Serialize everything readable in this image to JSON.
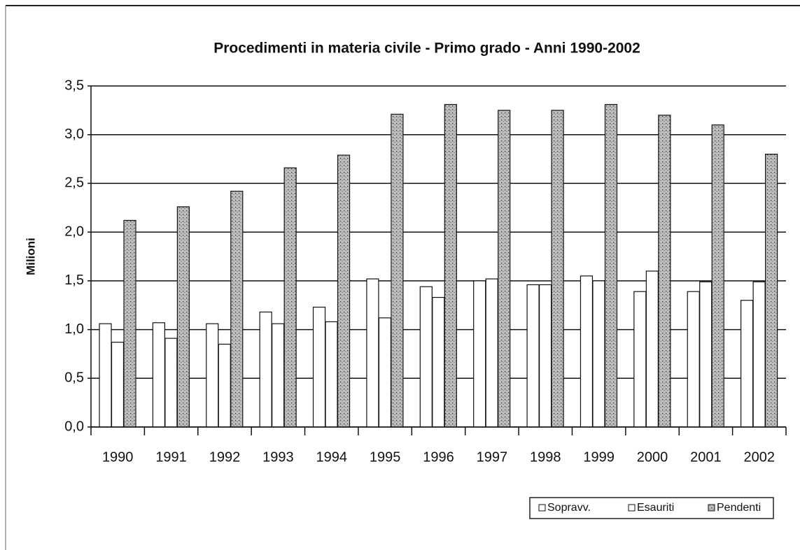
{
  "chart_data": {
    "type": "bar",
    "title": "Procedimenti in materia civile - Primo grado - Anni 1990-2002",
    "y_label": "Milioni",
    "categories": [
      "1990",
      "1991",
      "1992",
      "1993",
      "1994",
      "1995",
      "1996",
      "1997",
      "1998",
      "1999",
      "2000",
      "2001",
      "2002"
    ],
    "series": [
      {
        "name": "Sopravv.",
        "color": "#ffffff",
        "values": [
          1.06,
          1.07,
          1.06,
          1.18,
          1.23,
          1.52,
          1.44,
          1.5,
          1.46,
          1.55,
          1.39,
          1.39,
          1.3
        ]
      },
      {
        "name": "Esauriti",
        "color": "#ffffff",
        "values": [
          0.87,
          0.91,
          0.85,
          1.06,
          1.08,
          1.12,
          1.33,
          1.52,
          1.46,
          1.5,
          1.6,
          1.49,
          1.49
        ]
      },
      {
        "name": "Pendenti",
        "color": "#bdbdbd",
        "values": [
          2.12,
          2.26,
          2.42,
          2.66,
          2.79,
          3.21,
          3.31,
          3.25,
          3.25,
          3.31,
          3.2,
          3.1,
          2.8
        ]
      }
    ],
    "ylim": [
      0,
      3.5
    ],
    "yticks": [
      {
        "value": 0,
        "label": "0,0"
      },
      {
        "value": 0.5,
        "label": "0,5"
      },
      {
        "value": 1,
        "label": "1,0"
      },
      {
        "value": 1.5,
        "label": "1,5"
      },
      {
        "value": 2,
        "label": "2,0"
      },
      {
        "value": 2.5,
        "label": "2,5"
      },
      {
        "value": 3,
        "label": "3,0"
      },
      {
        "value": 3.5,
        "label": "3,5"
      }
    ],
    "grid": true,
    "legend": "bottom-right"
  }
}
